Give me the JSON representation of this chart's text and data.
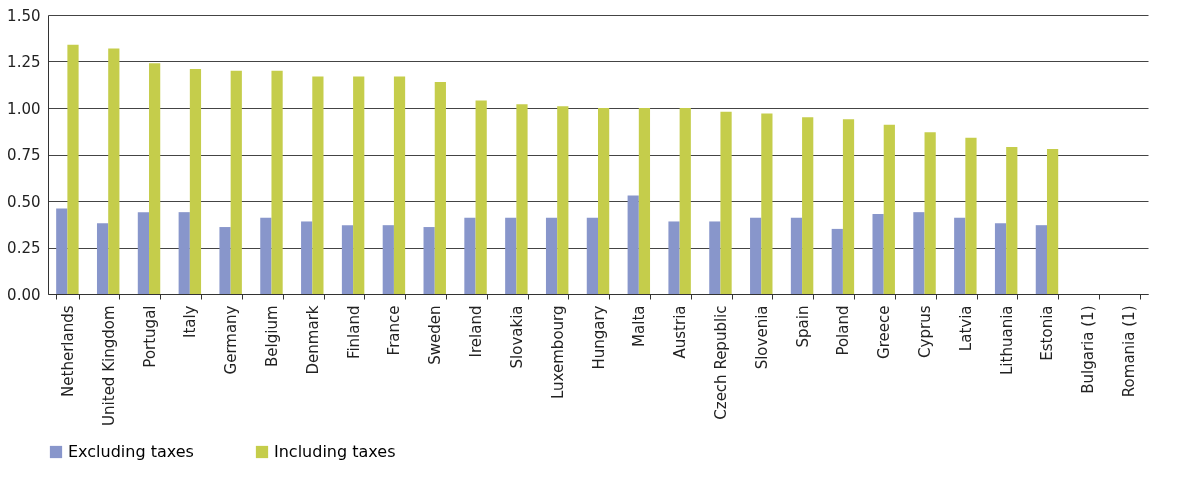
{
  "chart_data": {
    "type": "bar",
    "categories": [
      "Netherlands",
      "United Kingdom",
      "Portugal",
      "Italy",
      "Germany",
      "Belgium",
      "Denmark",
      "Finland",
      "France",
      "Sweden",
      "Ireland",
      "Slovakia",
      "Luxembourg",
      "Hungary",
      "Malta",
      "Austria",
      "Czech Republic",
      "Slovenia",
      "Spain",
      "Poland",
      "Greece",
      "Cyprus",
      "Latvia",
      "Lithuania",
      "Estonia",
      "Bulgaria (1)",
      "Romania (1)"
    ],
    "series": [
      {
        "name": "Excluding taxes",
        "color": "#8896cb",
        "values": [
          0.46,
          0.38,
          0.44,
          0.44,
          0.36,
          0.41,
          0.39,
          0.37,
          0.37,
          0.36,
          0.41,
          0.41,
          0.41,
          0.41,
          0.53,
          0.39,
          0.39,
          0.41,
          0.41,
          0.35,
          0.43,
          0.44,
          0.41,
          0.38,
          0.37,
          null,
          null
        ]
      },
      {
        "name": "Including taxes",
        "color": "#c5cd4b",
        "values": [
          1.34,
          1.32,
          1.24,
          1.21,
          1.2,
          1.2,
          1.17,
          1.17,
          1.17,
          1.14,
          1.04,
          1.02,
          1.01,
          1.0,
          1.0,
          1.0,
          0.98,
          0.97,
          0.95,
          0.94,
          0.91,
          0.87,
          0.84,
          0.79,
          0.78,
          null,
          null
        ]
      }
    ],
    "ylim": [
      0,
      1.5
    ],
    "yticks": [
      {
        "value": 0,
        "label": "0.00"
      },
      {
        "value": 0.25,
        "label": "0.25"
      },
      {
        "value": 0.5,
        "label": "0.50"
      },
      {
        "value": 0.75,
        "label": "0.75"
      },
      {
        "value": 1,
        "label": "1.00"
      },
      {
        "value": 1.25,
        "label": "1.25"
      },
      {
        "value": 1.5,
        "label": "1.50"
      }
    ],
    "grid": "y",
    "legend": "bottom"
  }
}
